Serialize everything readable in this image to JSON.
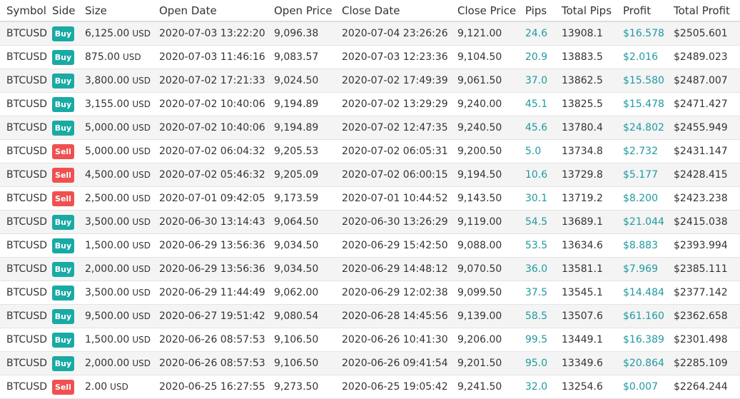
{
  "columns": [
    {
      "key": "symbol",
      "label": "Symbol"
    },
    {
      "key": "side",
      "label": "Side"
    },
    {
      "key": "size",
      "label": "Size"
    },
    {
      "key": "open_date",
      "label": "Open Date"
    },
    {
      "key": "open_price",
      "label": "Open Price"
    },
    {
      "key": "close_date",
      "label": "Close Date"
    },
    {
      "key": "close_price",
      "label": "Close Price"
    },
    {
      "key": "pips",
      "label": "Pips"
    },
    {
      "key": "total_pips",
      "label": "Total Pips"
    },
    {
      "key": "profit",
      "label": "Profit"
    },
    {
      "key": "total_profit",
      "label": "Total Profit"
    }
  ],
  "colors": {
    "buy_badge": "#1aaaa4",
    "sell_badge": "#f05050",
    "positive_value": "#1f9aa0",
    "row_stripe": "#f4f4f4"
  },
  "rows": [
    {
      "symbol": "BTCUSD",
      "side": "Buy",
      "size": "6,125.00",
      "size_unit": "USD",
      "open_date": "2020-07-03 13:22:20",
      "open_price": "9,096.38",
      "close_date": "2020-07-04 23:26:26",
      "close_price": "9,121.00",
      "pips": "24.6",
      "total_pips": "13908.1",
      "profit": "$16.578",
      "total_profit": "$2505.601"
    },
    {
      "symbol": "BTCUSD",
      "side": "Buy",
      "size": "875.00",
      "size_unit": "USD",
      "open_date": "2020-07-03 11:46:16",
      "open_price": "9,083.57",
      "close_date": "2020-07-03 12:23:36",
      "close_price": "9,104.50",
      "pips": "20.9",
      "total_pips": "13883.5",
      "profit": "$2.016",
      "total_profit": "$2489.023"
    },
    {
      "symbol": "BTCUSD",
      "side": "Buy",
      "size": "3,800.00",
      "size_unit": "USD",
      "open_date": "2020-07-02 17:21:33",
      "open_price": "9,024.50",
      "close_date": "2020-07-02 17:49:39",
      "close_price": "9,061.50",
      "pips": "37.0",
      "total_pips": "13862.5",
      "profit": "$15.580",
      "total_profit": "$2487.007"
    },
    {
      "symbol": "BTCUSD",
      "side": "Buy",
      "size": "3,155.00",
      "size_unit": "USD",
      "open_date": "2020-07-02 10:40:06",
      "open_price": "9,194.89",
      "close_date": "2020-07-02 13:29:29",
      "close_price": "9,240.00",
      "pips": "45.1",
      "total_pips": "13825.5",
      "profit": "$15.478",
      "total_profit": "$2471.427"
    },
    {
      "symbol": "BTCUSD",
      "side": "Buy",
      "size": "5,000.00",
      "size_unit": "USD",
      "open_date": "2020-07-02 10:40:06",
      "open_price": "9,194.89",
      "close_date": "2020-07-02 12:47:35",
      "close_price": "9,240.50",
      "pips": "45.6",
      "total_pips": "13780.4",
      "profit": "$24.802",
      "total_profit": "$2455.949"
    },
    {
      "symbol": "BTCUSD",
      "side": "Sell",
      "size": "5,000.00",
      "size_unit": "USD",
      "open_date": "2020-07-02 06:04:32",
      "open_price": "9,205.53",
      "close_date": "2020-07-02 06:05:31",
      "close_price": "9,200.50",
      "pips": "5.0",
      "total_pips": "13734.8",
      "profit": "$2.732",
      "total_profit": "$2431.147"
    },
    {
      "symbol": "BTCUSD",
      "side": "Sell",
      "size": "4,500.00",
      "size_unit": "USD",
      "open_date": "2020-07-02 05:46:32",
      "open_price": "9,205.09",
      "close_date": "2020-07-02 06:00:15",
      "close_price": "9,194.50",
      "pips": "10.6",
      "total_pips": "13729.8",
      "profit": "$5.177",
      "total_profit": "$2428.415"
    },
    {
      "symbol": "BTCUSD",
      "side": "Sell",
      "size": "2,500.00",
      "size_unit": "USD",
      "open_date": "2020-07-01 09:42:05",
      "open_price": "9,173.59",
      "close_date": "2020-07-01 10:44:52",
      "close_price": "9,143.50",
      "pips": "30.1",
      "total_pips": "13719.2",
      "profit": "$8.200",
      "total_profit": "$2423.238"
    },
    {
      "symbol": "BTCUSD",
      "side": "Buy",
      "size": "3,500.00",
      "size_unit": "USD",
      "open_date": "2020-06-30 13:14:43",
      "open_price": "9,064.50",
      "close_date": "2020-06-30 13:26:29",
      "close_price": "9,119.00",
      "pips": "54.5",
      "total_pips": "13689.1",
      "profit": "$21.044",
      "total_profit": "$2415.038"
    },
    {
      "symbol": "BTCUSD",
      "side": "Buy",
      "size": "1,500.00",
      "size_unit": "USD",
      "open_date": "2020-06-29 13:56:36",
      "open_price": "9,034.50",
      "close_date": "2020-06-29 15:42:50",
      "close_price": "9,088.00",
      "pips": "53.5",
      "total_pips": "13634.6",
      "profit": "$8.883",
      "total_profit": "$2393.994"
    },
    {
      "symbol": "BTCUSD",
      "side": "Buy",
      "size": "2,000.00",
      "size_unit": "USD",
      "open_date": "2020-06-29 13:56:36",
      "open_price": "9,034.50",
      "close_date": "2020-06-29 14:48:12",
      "close_price": "9,070.50",
      "pips": "36.0",
      "total_pips": "13581.1",
      "profit": "$7.969",
      "total_profit": "$2385.111"
    },
    {
      "symbol": "BTCUSD",
      "side": "Buy",
      "size": "3,500.00",
      "size_unit": "USD",
      "open_date": "2020-06-29 11:44:49",
      "open_price": "9,062.00",
      "close_date": "2020-06-29 12:02:38",
      "close_price": "9,099.50",
      "pips": "37.5",
      "total_pips": "13545.1",
      "profit": "$14.484",
      "total_profit": "$2377.142"
    },
    {
      "symbol": "BTCUSD",
      "side": "Buy",
      "size": "9,500.00",
      "size_unit": "USD",
      "open_date": "2020-06-27 19:51:42",
      "open_price": "9,080.54",
      "close_date": "2020-06-28 14:45:56",
      "close_price": "9,139.00",
      "pips": "58.5",
      "total_pips": "13507.6",
      "profit": "$61.160",
      "total_profit": "$2362.658"
    },
    {
      "symbol": "BTCUSD",
      "side": "Buy",
      "size": "1,500.00",
      "size_unit": "USD",
      "open_date": "2020-06-26 08:57:53",
      "open_price": "9,106.50",
      "close_date": "2020-06-26 10:41:30",
      "close_price": "9,206.00",
      "pips": "99.5",
      "total_pips": "13449.1",
      "profit": "$16.389",
      "total_profit": "$2301.498"
    },
    {
      "symbol": "BTCUSD",
      "side": "Buy",
      "size": "2,000.00",
      "size_unit": "USD",
      "open_date": "2020-06-26 08:57:53",
      "open_price": "9,106.50",
      "close_date": "2020-06-26 09:41:54",
      "close_price": "9,201.50",
      "pips": "95.0",
      "total_pips": "13349.6",
      "profit": "$20.864",
      "total_profit": "$2285.109"
    },
    {
      "symbol": "BTCUSD",
      "side": "Sell",
      "size": "2.00",
      "size_unit": "USD",
      "open_date": "2020-06-25 16:27:55",
      "open_price": "9,273.50",
      "close_date": "2020-06-25 19:05:42",
      "close_price": "9,241.50",
      "pips": "32.0",
      "total_pips": "13254.6",
      "profit": "$0.007",
      "total_profit": "$2264.244"
    }
  ]
}
